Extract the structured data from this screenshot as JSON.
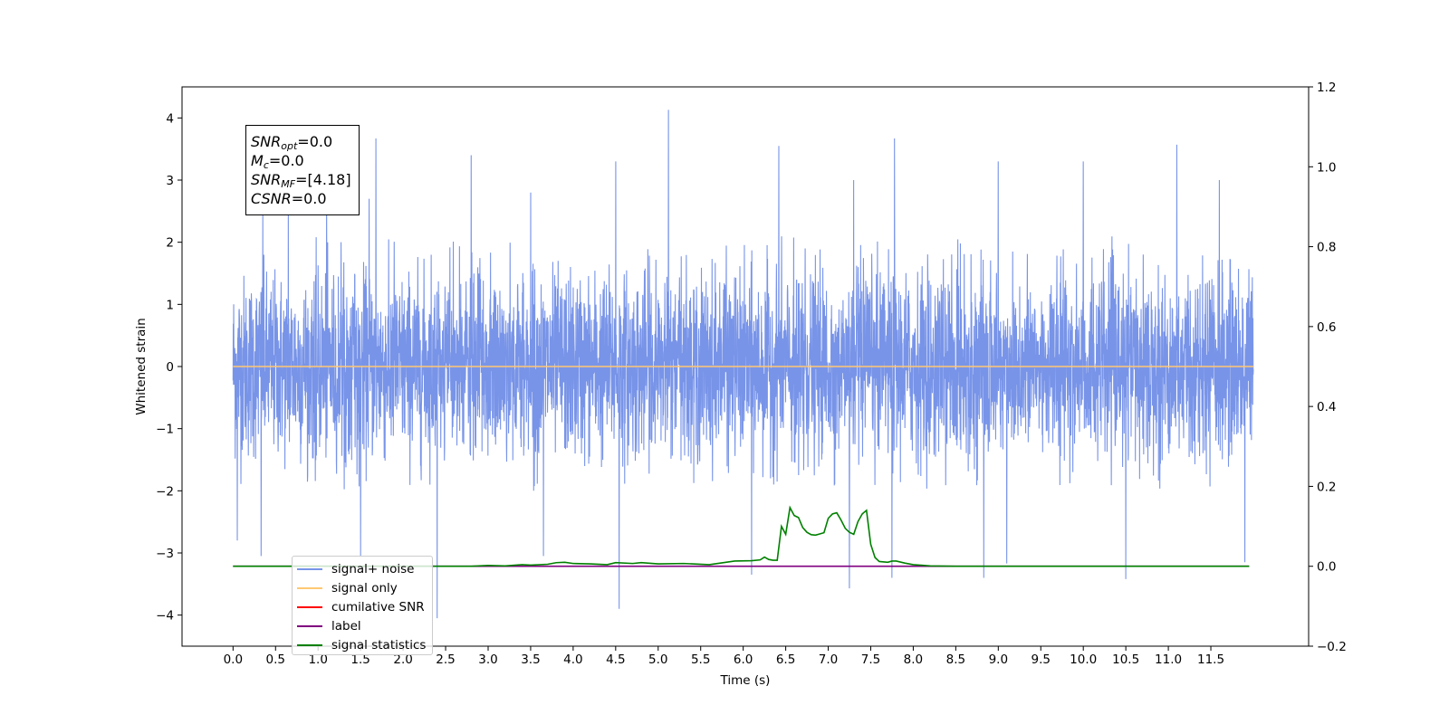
{
  "chart_data": {
    "type": "line",
    "xlabel": "Time (s)",
    "ylabel": "Whitened strain",
    "xlim": [
      -0.6,
      12.65
    ],
    "ylim": [
      -4.5,
      4.5
    ],
    "y2lim": [
      -0.2,
      1.2
    ],
    "x_ticks": [
      0.0,
      0.5,
      1.0,
      1.5,
      2.0,
      2.5,
      3.0,
      3.5,
      4.0,
      4.5,
      5.0,
      5.5,
      6.0,
      6.5,
      7.0,
      7.5,
      8.0,
      8.5,
      9.0,
      9.5,
      10.0,
      10.5,
      11.0,
      11.5
    ],
    "x_tick_labels": [
      "0.0",
      "0.5",
      "1.0",
      "1.5",
      "2.0",
      "2.5",
      "3.0",
      "3.5",
      "4.0",
      "4.5",
      "5.0",
      "5.5",
      "6.0",
      "6.5",
      "7.0",
      "7.5",
      "8.0",
      "8.5",
      "9.0",
      "9.5",
      "10.0",
      "10.5",
      "11.0",
      "11.5"
    ],
    "y_ticks": [
      4,
      3,
      2,
      1,
      0,
      -1,
      -2,
      -3,
      -4
    ],
    "y_tick_labels": [
      "4",
      "3",
      "2",
      "1",
      "0",
      "−1",
      "−2",
      "−3",
      "−4"
    ],
    "y2_ticks": [
      1.2,
      1.0,
      0.8,
      0.6,
      0.4,
      0.2,
      0.0,
      -0.2
    ],
    "y2_tick_labels": [
      "1.2",
      "1.0",
      "0.8",
      "0.6",
      "0.4",
      "0.2",
      "0.0",
      "−0.2"
    ],
    "grid": false,
    "legend_position": "lower-left",
    "noise": {
      "x_range": [
        0.0,
        12.0
      ],
      "typical_range": [
        -1.5,
        1.5
      ],
      "envelope_range": [
        -2.0,
        2.1
      ],
      "peaks_up": [
        {
          "x": 0.35,
          "y": 2.5
        },
        {
          "x": 0.65,
          "y": 2.6
        },
        {
          "x": 1.1,
          "y": 2.7
        },
        {
          "x": 1.6,
          "y": 2.7
        },
        {
          "x": 1.68,
          "y": 3.67
        },
        {
          "x": 2.8,
          "y": 3.4
        },
        {
          "x": 3.5,
          "y": 2.8
        },
        {
          "x": 4.5,
          "y": 3.3
        },
        {
          "x": 5.12,
          "y": 4.13
        },
        {
          "x": 6.42,
          "y": 3.55
        },
        {
          "x": 7.3,
          "y": 3.0
        },
        {
          "x": 7.78,
          "y": 3.67
        },
        {
          "x": 9.0,
          "y": 3.3
        },
        {
          "x": 10.0,
          "y": 3.3
        },
        {
          "x": 11.1,
          "y": 3.57
        },
        {
          "x": 11.6,
          "y": 3.0
        }
      ],
      "peaks_down": [
        {
          "x": 0.05,
          "y": -2.8
        },
        {
          "x": 0.33,
          "y": -3.05
        },
        {
          "x": 1.5,
          "y": -3.05
        },
        {
          "x": 2.4,
          "y": -4.05
        },
        {
          "x": 3.65,
          "y": -3.05
        },
        {
          "x": 4.54,
          "y": -3.9
        },
        {
          "x": 6.1,
          "y": -3.35
        },
        {
          "x": 7.25,
          "y": -3.57
        },
        {
          "x": 7.75,
          "y": -3.4
        },
        {
          "x": 8.83,
          "y": -3.4
        },
        {
          "x": 9.1,
          "y": -3.17
        },
        {
          "x": 10.5,
          "y": -3.42
        },
        {
          "x": 11.9,
          "y": -3.15
        }
      ]
    },
    "series": [
      {
        "name": "signal+ noise",
        "color": "#7894e8",
        "data": "noise",
        "axis": "left"
      },
      {
        "name": "signal only",
        "color": "#ffc872",
        "x": [
          0.0,
          12.0
        ],
        "y": [
          0.0,
          0.0
        ],
        "axis": "left"
      },
      {
        "name": "cumilative SNR",
        "color": "#ff0000",
        "x": [],
        "y": [],
        "axis": "left"
      },
      {
        "name": "label",
        "color": "#800080",
        "x": [
          0.0,
          11.95
        ],
        "y": [
          0.0,
          0.0
        ],
        "axis": "right"
      },
      {
        "name": "signal statistics",
        "color": "#008000",
        "axis": "right",
        "x": [
          0.0,
          2.8,
          3.0,
          3.2,
          3.4,
          3.5,
          3.7,
          3.8,
          3.9,
          4.0,
          4.2,
          4.4,
          4.5,
          4.7,
          4.8,
          5.0,
          5.3,
          5.6,
          5.9,
          6.1,
          6.2,
          6.25,
          6.3,
          6.35,
          6.4,
          6.45,
          6.5,
          6.55,
          6.6,
          6.65,
          6.7,
          6.75,
          6.8,
          6.85,
          6.9,
          6.95,
          7.0,
          7.05,
          7.1,
          7.15,
          7.2,
          7.25,
          7.3,
          7.35,
          7.4,
          7.45,
          7.5,
          7.55,
          7.6,
          7.7,
          7.75,
          7.8,
          7.9,
          8.0,
          8.2,
          8.5,
          11.95
        ],
        "y": [
          0.0,
          0.0,
          0.002,
          0.001,
          0.004,
          0.003,
          0.005,
          0.009,
          0.01,
          0.007,
          0.006,
          0.004,
          0.009,
          0.007,
          0.009,
          0.006,
          0.007,
          0.004,
          0.013,
          0.014,
          0.016,
          0.023,
          0.017,
          0.015,
          0.015,
          0.1,
          0.08,
          0.147,
          0.127,
          0.122,
          0.097,
          0.085,
          0.079,
          0.078,
          0.081,
          0.084,
          0.12,
          0.131,
          0.134,
          0.116,
          0.095,
          0.085,
          0.08,
          0.112,
          0.131,
          0.14,
          0.055,
          0.022,
          0.012,
          0.01,
          0.013,
          0.013,
          0.008,
          0.004,
          0.001,
          0.0,
          0.0
        ]
      }
    ]
  },
  "annotation": {
    "snr_opt_sym": "SNR",
    "snr_opt_sub": "opt",
    "snr_opt_val": "=0.0",
    "mc_sym": "M",
    "mc_sub": "c",
    "mc_val": "=0.0",
    "snr_mf_sym": "SNR",
    "snr_mf_sub": "MF",
    "snr_mf_val": "=[4.18]",
    "csnr_sym": "CSNR",
    "csnr_val": "=0.0"
  }
}
